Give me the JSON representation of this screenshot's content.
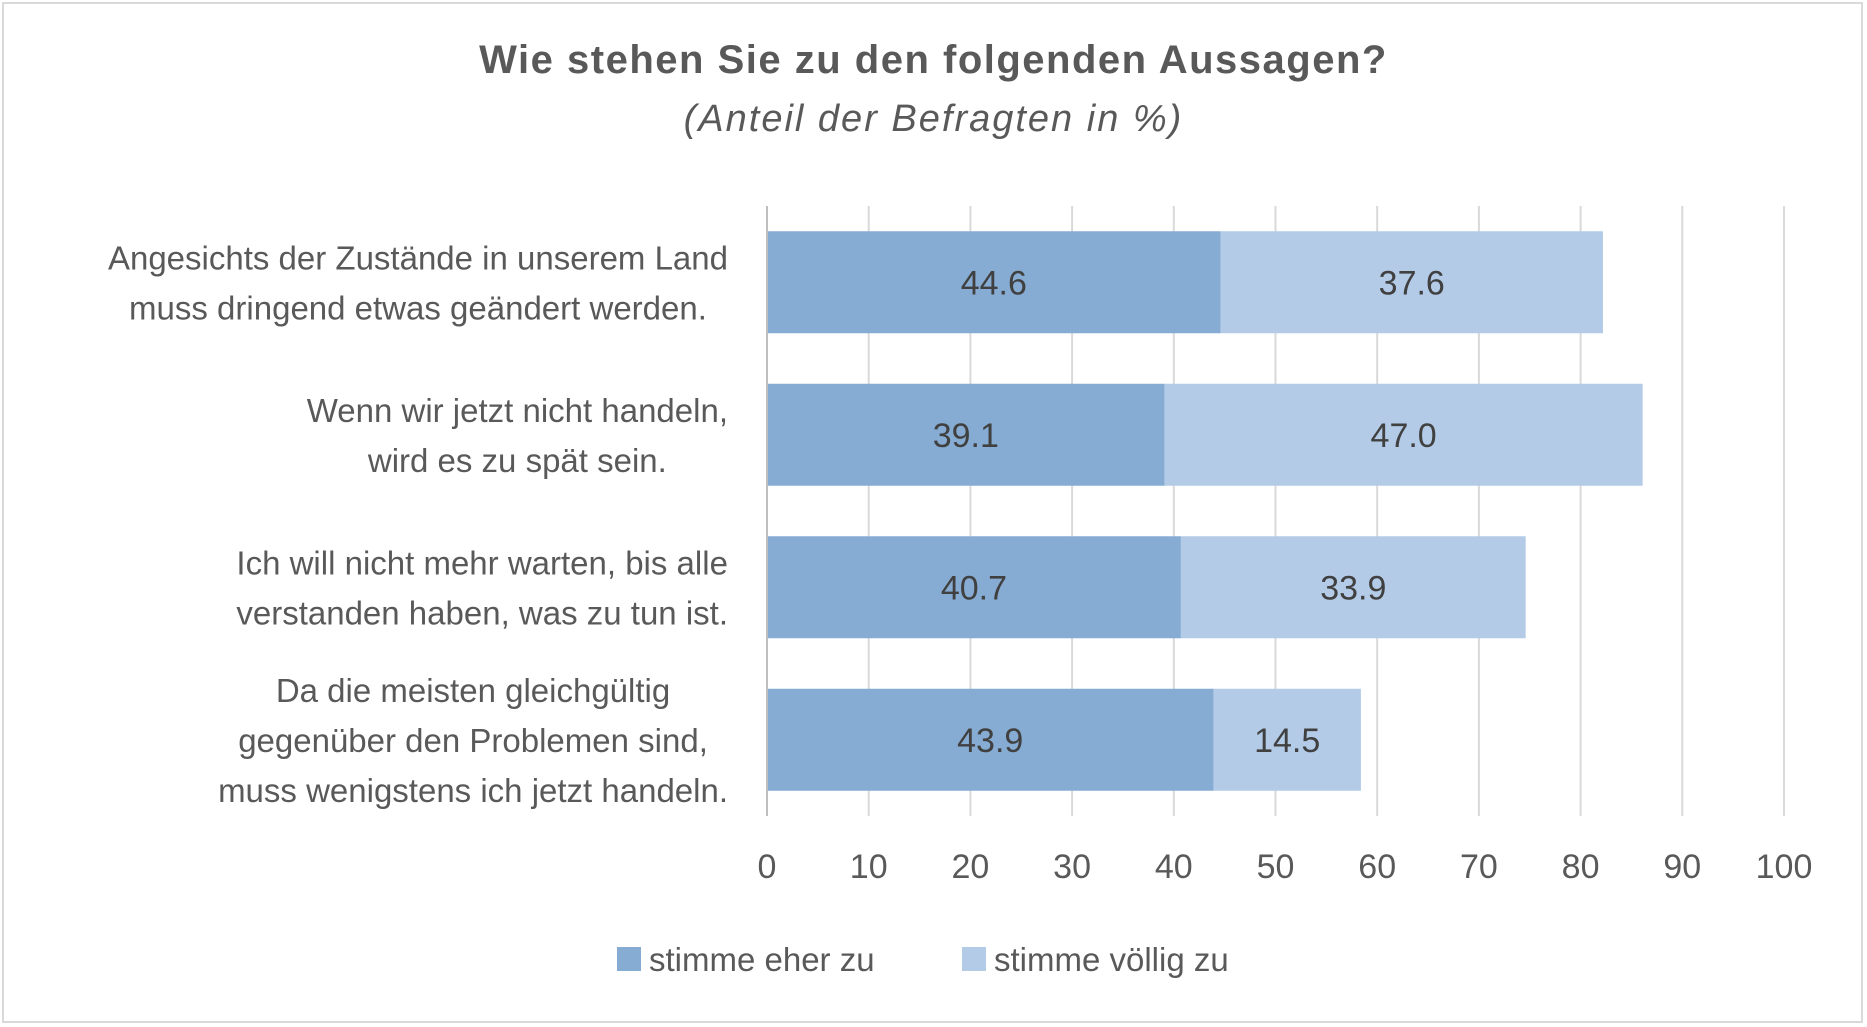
{
  "chart_data": {
    "type": "bar",
    "orientation": "horizontal",
    "stacked": true,
    "title": "Wie stehen Sie zu den folgenden Aussagen?",
    "subtitle": "(Anteil der Befragten in %)",
    "categories": [
      [
        "Angesichts der Zustände in unserem Land",
        "muss dringend etwas geändert werden."
      ],
      [
        "Wenn wir jetzt nicht handeln,",
        "wird es zu spät sein."
      ],
      [
        "Ich will nicht mehr warten, bis alle",
        "verstanden haben, was zu tun ist."
      ],
      [
        "Da die meisten gleichgültig",
        "gegenüber den Problemen sind,",
        "muss wenigstens ich jetzt handeln."
      ]
    ],
    "series": [
      {
        "name": "stimme eher zu",
        "values": [
          44.6,
          39.1,
          40.7,
          43.9
        ],
        "labels": [
          "44.6",
          "39.1",
          "40.7",
          "43.9"
        ],
        "color": "#87acd3"
      },
      {
        "name": "stimme völlig zu",
        "values": [
          37.6,
          47.0,
          33.9,
          14.5
        ],
        "labels": [
          "37.6",
          "47.0",
          "33.9",
          "14.5"
        ],
        "color": "#b4cbe8"
      }
    ],
    "xlim": [
      0,
      100
    ],
    "xticks": [
      "0",
      "10",
      "20",
      "30",
      "40",
      "50",
      "60",
      "70",
      "80",
      "90",
      "100"
    ],
    "grid": true,
    "legend_position": "bottom"
  }
}
